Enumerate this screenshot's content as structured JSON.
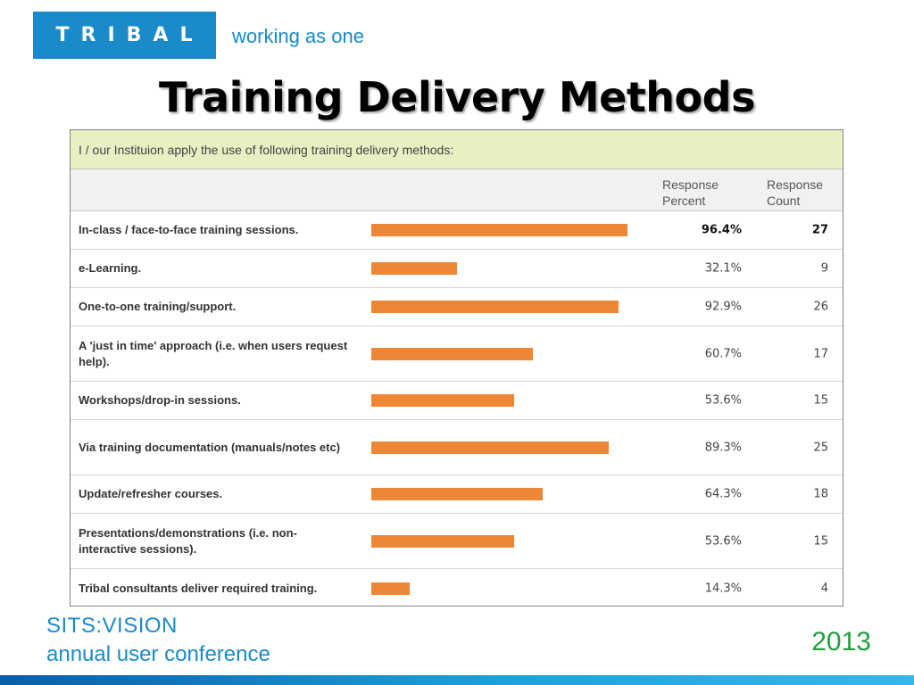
{
  "header": {
    "logo_text": "TRIBAL",
    "tagline": "working as one"
  },
  "title": "Training Delivery Methods",
  "survey": {
    "question": "I / our Instituion apply the use of following training delivery methods:",
    "col_percent": "Response Percent",
    "col_count": "Response Count"
  },
  "chart_data": {
    "type": "bar",
    "orientation": "horizontal",
    "title": "I / our Instituion apply the use of following training delivery methods:",
    "categories": [
      "In-class / face-to-face training sessions.",
      "e-Learning.",
      "One-to-one training/support.",
      "A 'just in time' approach (i.e. when users request help).",
      "Workshops/drop-in sessions.",
      "Via training documentation (manuals/notes etc)",
      "Update/refresher courses.",
      "Presentations/demonstrations (i.e. non-interactive sessions).",
      "Tribal consultants deliver required training."
    ],
    "series": [
      {
        "name": "Response Percent",
        "values": [
          96.4,
          32.1,
          92.9,
          60.7,
          53.6,
          89.3,
          64.3,
          53.6,
          14.3
        ]
      },
      {
        "name": "Response Count",
        "values": [
          27,
          9,
          26,
          17,
          15,
          25,
          18,
          15,
          4
        ]
      }
    ],
    "percent_labels": [
      "96.4%",
      "32.1%",
      "92.9%",
      "60.7%",
      "53.6%",
      "89.3%",
      "64.3%",
      "53.6%",
      "14.3%"
    ],
    "xlim": [
      0,
      100
    ],
    "bar_color": "#ee8735",
    "grid": false,
    "highlight_index": 0
  },
  "footer": {
    "brand_line1": "SITS:VISION",
    "brand_line2": "annual user conference",
    "year": "2013"
  },
  "colors": {
    "brand_blue": "#1a8ac8",
    "year_green": "#22a03c",
    "question_bg": "#e9eec3"
  }
}
